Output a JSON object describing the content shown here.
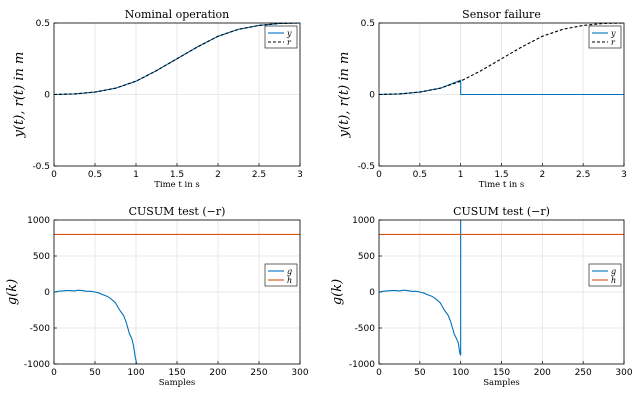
{
  "chart_data": [
    {
      "type": "line",
      "title": "Nominal operation",
      "xlabel": "Time t in s",
      "ylabel": "y(t), r(t) in m",
      "xlim": [
        0,
        3
      ],
      "ylim": [
        -0.5,
        0.5
      ],
      "xticks": [
        "0",
        "0.5",
        "1",
        "1.5",
        "2",
        "2.5",
        "3"
      ],
      "yticks": [
        "-0.5",
        "0",
        "0.5"
      ],
      "grid": true,
      "legend_placement": "top-right",
      "series": [
        {
          "name": "y",
          "color": "#0072BD",
          "style": "solid",
          "x": [
            0,
            0.25,
            0.5,
            0.75,
            1.0,
            1.25,
            1.5,
            1.75,
            2.0,
            2.25,
            2.5,
            2.75,
            3.0
          ],
          "y": [
            0,
            0.004,
            0.017,
            0.044,
            0.093,
            0.167,
            0.25,
            0.333,
            0.407,
            0.456,
            0.483,
            0.497,
            0.5
          ]
        },
        {
          "name": "r",
          "color": "#000000",
          "style": "dashed",
          "x": [
            0,
            0.25,
            0.5,
            0.75,
            1.0,
            1.25,
            1.5,
            1.75,
            2.0,
            2.25,
            2.5,
            2.75,
            3.0
          ],
          "y": [
            0,
            0.004,
            0.017,
            0.044,
            0.093,
            0.167,
            0.25,
            0.333,
            0.407,
            0.456,
            0.483,
            0.497,
            0.5
          ]
        }
      ]
    },
    {
      "type": "line",
      "title": "Sensor failure",
      "xlabel": "Time t in s",
      "ylabel": "y(t), r(t) in m",
      "xlim": [
        0,
        3
      ],
      "ylim": [
        -0.5,
        0.5
      ],
      "xticks": [
        "0",
        "0.5",
        "1",
        "1.5",
        "2",
        "2.5",
        "3"
      ],
      "yticks": [
        "-0.5",
        "0",
        "0.5"
      ],
      "grid": true,
      "legend_placement": "top-right",
      "series": [
        {
          "name": "y",
          "color": "#0072BD",
          "style": "solid",
          "x": [
            0,
            0.25,
            0.5,
            0.75,
            1.0,
            1.0,
            1.5,
            2.0,
            2.5,
            3.0
          ],
          "y": [
            0,
            0.004,
            0.017,
            0.044,
            0.1,
            0,
            0,
            0,
            0,
            0
          ]
        },
        {
          "name": "r",
          "color": "#000000",
          "style": "dashed",
          "x": [
            0,
            0.25,
            0.5,
            0.75,
            1.0,
            1.25,
            1.5,
            1.75,
            2.0,
            2.25,
            2.5,
            2.75,
            3.0
          ],
          "y": [
            0,
            0.004,
            0.017,
            0.044,
            0.093,
            0.167,
            0.25,
            0.333,
            0.407,
            0.456,
            0.483,
            0.497,
            0.5
          ]
        }
      ]
    },
    {
      "type": "line",
      "title": "CUSUM test (−r)",
      "xlabel": "Samples",
      "ylabel": "g(k)",
      "xlim": [
        0,
        300
      ],
      "ylim": [
        -1000,
        1000
      ],
      "xticks": [
        "0",
        "50",
        "100",
        "150",
        "200",
        "250",
        "300"
      ],
      "yticks": [
        "-1000",
        "-500",
        "0",
        "500",
        "1000"
      ],
      "grid": true,
      "legend_placement": "right",
      "series": [
        {
          "name": "g",
          "color": "#0072BD",
          "style": "solid",
          "x": [
            0,
            5,
            10,
            15,
            20,
            25,
            30,
            35,
            40,
            45,
            50,
            55,
            60,
            65,
            70,
            75,
            80,
            85,
            88,
            90,
            92,
            95,
            97,
            99,
            100,
            101
          ],
          "y": [
            0,
            10,
            15,
            20,
            20,
            15,
            25,
            20,
            10,
            10,
            0,
            -15,
            -40,
            -60,
            -100,
            -150,
            -250,
            -330,
            -420,
            -500,
            -580,
            -650,
            -750,
            -900,
            -950,
            -1000
          ]
        },
        {
          "name": "h",
          "color": "#D95319",
          "style": "solid",
          "x": [
            0,
            300
          ],
          "y": [
            800,
            800
          ]
        }
      ]
    },
    {
      "type": "line",
      "title": "CUSUM test (−r)",
      "xlabel": "Samples",
      "ylabel": "g(k)",
      "xlim": [
        0,
        300
      ],
      "ylim": [
        -1000,
        1000
      ],
      "xticks": [
        "0",
        "50",
        "100",
        "150",
        "200",
        "250",
        "300"
      ],
      "yticks": [
        "-1000",
        "-500",
        "0",
        "500",
        "1000"
      ],
      "grid": true,
      "legend_placement": "right",
      "series": [
        {
          "name": "g",
          "color": "#0072BD",
          "style": "solid",
          "x": [
            0,
            5,
            10,
            15,
            20,
            25,
            30,
            35,
            40,
            45,
            50,
            55,
            60,
            65,
            70,
            75,
            80,
            85,
            88,
            90,
            92,
            95,
            97,
            99,
            100,
            100,
            100.5
          ],
          "y": [
            0,
            10,
            15,
            20,
            20,
            15,
            25,
            20,
            10,
            10,
            0,
            -15,
            -40,
            -60,
            -100,
            -150,
            -250,
            -330,
            -420,
            -500,
            -580,
            -650,
            -700,
            -850,
            -880,
            1000,
            1000
          ]
        },
        {
          "name": "h",
          "color": "#D95319",
          "style": "solid",
          "x": [
            0,
            300
          ],
          "y": [
            800,
            800
          ]
        }
      ]
    }
  ]
}
